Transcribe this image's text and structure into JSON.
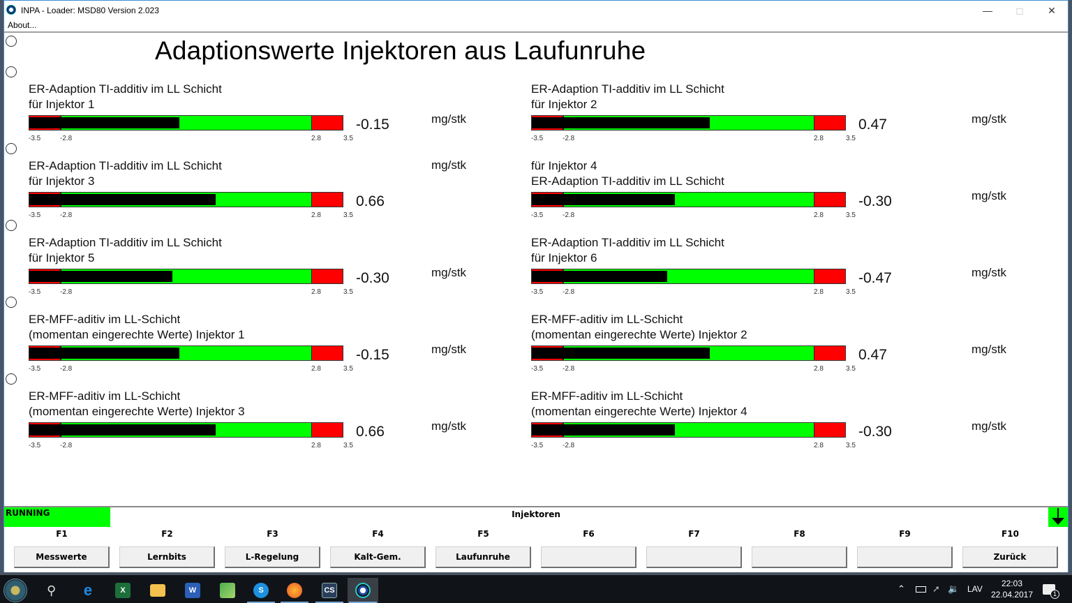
{
  "window": {
    "title": "INPA - Loader:  MSD80 Version 2.023",
    "minimize_icon": "minimize-icon",
    "maximize_icon": "maximize-icon",
    "close_icon": "close-icon"
  },
  "menu": {
    "about": "About..."
  },
  "page": {
    "title": "Adaptionswerte Injektoren aus Laufunruhe"
  },
  "scale": {
    "min": "-3.5",
    "low": "-2.8",
    "high": "2.8",
    "max": "3.5"
  },
  "measurements": [
    {
      "line1": "ER-Adaption TI-additiv im LL Schicht",
      "line2": "für Injektor 1",
      "value": "-0.15",
      "unit": "mg/stk"
    },
    {
      "line1": "ER-Adaption TI-additiv im LL Schicht",
      "line2": "für Injektor 2",
      "value": "0.47",
      "unit": "mg/stk"
    },
    {
      "line1": "ER-Adaption TI-additiv im LL Schicht",
      "line2": "für Injektor 3",
      "value": "0.66",
      "unit": "mg/stk"
    },
    {
      "line1": "für Injektor 4",
      "line2": "ER-Adaption TI-additiv im LL Schicht",
      "value": "-0.30",
      "unit": "mg/stk"
    },
    {
      "line1": "ER-Adaption TI-additiv im LL Schicht",
      "line2": "für Injektor 5",
      "value": "-0.30",
      "unit": "mg/stk"
    },
    {
      "line1": "ER-Adaption TI-additiv im LL Schicht",
      "line2": "für Injektor 6",
      "value": "-0.47",
      "unit": "mg/stk"
    },
    {
      "line1": "ER-MFF-aditiv im LL-Schicht",
      "line2": "(momentan eingerechte Werte) Injektor 1",
      "value": "-0.15",
      "unit": "mg/stk"
    },
    {
      "line1": "ER-MFF-aditiv im LL-Schicht",
      "line2": "(momentan eingerechte Werte) Injektor 2",
      "value": "0.47",
      "unit": "mg/stk"
    },
    {
      "line1": "ER-MFF-aditiv im LL-Schicht",
      "line2": "(momentan eingerechte Werte) Injektor 3",
      "value": "0.66",
      "unit": "mg/stk"
    },
    {
      "line1": "ER-MFF-aditiv im LL-Schicht",
      "line2": "(momentan eingerechte Werte) Injektor 4",
      "value": "-0.30",
      "unit": "mg/stk"
    }
  ],
  "colors": {
    "in_range": "#00ff00",
    "out_of_range": "#ff0000",
    "fill": "#000000",
    "status_running": "#00ff00"
  },
  "status": {
    "state": "RUNNING",
    "section": "Injektoren"
  },
  "fkeys": [
    {
      "key": "F1",
      "label": "Messwerte"
    },
    {
      "key": "F2",
      "label": "Lernbits"
    },
    {
      "key": "F3",
      "label": "L-Regelung"
    },
    {
      "key": "F4",
      "label": "Kalt-Gem."
    },
    {
      "key": "F5",
      "label": "Laufunruhe"
    },
    {
      "key": "F6",
      "label": ""
    },
    {
      "key": "F7",
      "label": ""
    },
    {
      "key": "F8",
      "label": ""
    },
    {
      "key": "F9",
      "label": ""
    },
    {
      "key": "F10",
      "label": "Zurück"
    }
  ],
  "taskbar": {
    "apps": [
      "start-icon",
      "search-icon",
      "edge-icon",
      "excel-icon",
      "file-explorer-icon",
      "word-icon",
      "app-green-icon",
      "skype-icon",
      "firefox-icon",
      "cs-icon",
      "inpa-bmw-icon"
    ],
    "tray": {
      "language": "LAV",
      "time": "22:03",
      "date": "22.04.2017",
      "notifications": "1"
    }
  }
}
